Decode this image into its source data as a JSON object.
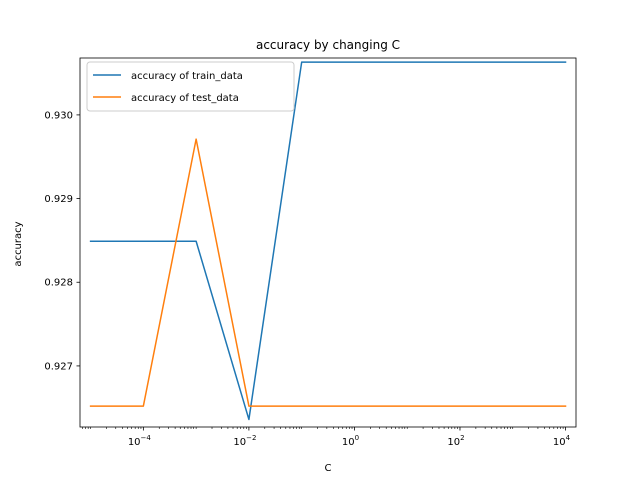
{
  "chart_data": {
    "type": "line",
    "title": "accuracy by changing C",
    "xlabel": "C",
    "ylabel": "accuracy",
    "xscale": "log",
    "xlim": [
      6.3e-06,
      15800
    ],
    "ylim": [
      0.92627,
      0.93068
    ],
    "grid": false,
    "legend_position": "upper-left",
    "x": [
      1e-05,
      0.0001,
      0.001,
      0.01,
      0.1,
      1,
      10,
      100,
      1000,
      10000
    ],
    "series": [
      {
        "name": "accuracy of train_data",
        "color": "#1f77b4",
        "values": [
          0.92849,
          0.92849,
          0.92849,
          0.92636,
          0.93063,
          0.93063,
          0.93063,
          0.93063,
          0.93063,
          0.93063
        ]
      },
      {
        "name": "accuracy of test_data",
        "color": "#ff7f0e",
        "values": [
          0.92652,
          0.92652,
          0.92971,
          0.92652,
          0.92652,
          0.92652,
          0.92652,
          0.92652,
          0.92652,
          0.92652
        ]
      }
    ],
    "x_ticks": [
      {
        "value": 0.0001,
        "base": "10",
        "exp": "−4"
      },
      {
        "value": 0.01,
        "base": "10",
        "exp": "−2"
      },
      {
        "value": 1,
        "base": "10",
        "exp": "0"
      },
      {
        "value": 100,
        "base": "10",
        "exp": "2"
      },
      {
        "value": 10000,
        "base": "10",
        "exp": "4"
      }
    ],
    "y_ticks": [
      {
        "value": 0.927,
        "label": "0.927"
      },
      {
        "value": 0.928,
        "label": "0.928"
      },
      {
        "value": 0.929,
        "label": "0.929"
      },
      {
        "value": 0.93,
        "label": "0.930"
      }
    ]
  }
}
